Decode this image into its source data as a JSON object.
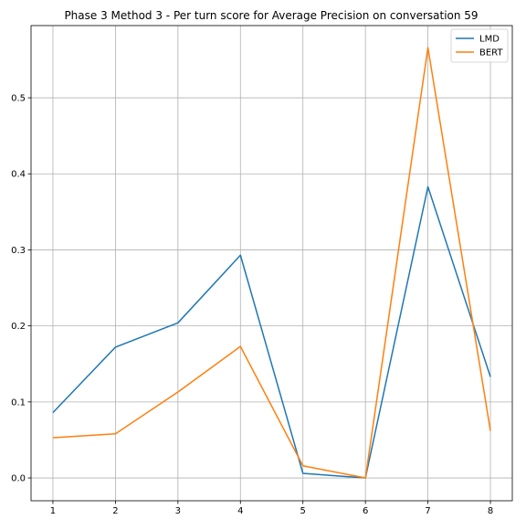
{
  "chart_data": {
    "type": "line",
    "title": "Phase 3 Method 3 - Per turn score for Average Precision on conversation 59",
    "xlabel": "",
    "ylabel": "",
    "x": [
      1,
      2,
      3,
      4,
      5,
      6,
      7,
      8
    ],
    "xlim": [
      0.65,
      8.35
    ],
    "ylim": [
      -0.03,
      0.595
    ],
    "xticks": [
      1,
      2,
      3,
      4,
      5,
      6,
      7,
      8
    ],
    "yticks": [
      0.0,
      0.1,
      0.2,
      0.3,
      0.4,
      0.5
    ],
    "ytick_labels": [
      "0.0",
      "0.1",
      "0.2",
      "0.3",
      "0.4",
      "0.5"
    ],
    "xtick_labels": [
      "1",
      "2",
      "3",
      "4",
      "5",
      "6",
      "7",
      "8"
    ],
    "grid": true,
    "legend_position": "top-right",
    "series": [
      {
        "name": "LMD",
        "color": "#1f77b4",
        "values": [
          0.086,
          0.172,
          0.204,
          0.293,
          0.006,
          0.0,
          0.383,
          0.133
        ]
      },
      {
        "name": "BERT",
        "color": "#ff7f0e",
        "values": [
          0.053,
          0.058,
          0.113,
          0.173,
          0.016,
          0.0,
          0.566,
          0.062
        ]
      }
    ]
  }
}
